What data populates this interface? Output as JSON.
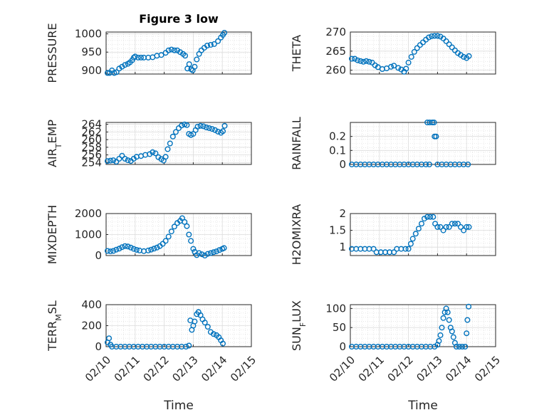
{
  "figure": {
    "title": "Figure 3 low",
    "xlabel": "Time",
    "xticks": [
      "02/10",
      "02/11",
      "02/12",
      "02/13",
      "02/14",
      "02/15"
    ],
    "marker_color": "#0072BD"
  },
  "chart_data": [
    {
      "type": "scatter",
      "ylabel": "PRESSURE",
      "title": "Figure 3 low",
      "xlim": [
        10,
        15
      ],
      "ylim": [
        890,
        1005
      ],
      "yticks": [
        900,
        950,
        1000
      ],
      "points": [
        [
          10.05,
          893
        ],
        [
          10.12,
          893
        ],
        [
          10.2,
          900
        ],
        [
          10.28,
          893
        ],
        [
          10.36,
          895
        ],
        [
          10.45,
          905
        ],
        [
          10.55,
          910
        ],
        [
          10.65,
          915
        ],
        [
          10.75,
          918
        ],
        [
          10.82,
          922
        ],
        [
          10.9,
          928
        ],
        [
          10.95,
          935
        ],
        [
          11.0,
          938
        ],
        [
          11.1,
          935
        ],
        [
          11.2,
          935
        ],
        [
          11.3,
          935
        ],
        [
          11.45,
          935
        ],
        [
          11.6,
          936
        ],
        [
          11.75,
          940
        ],
        [
          11.9,
          942
        ],
        [
          12.05,
          948
        ],
        [
          12.15,
          955
        ],
        [
          12.25,
          957
        ],
        [
          12.35,
          955
        ],
        [
          12.45,
          955
        ],
        [
          12.55,
          950
        ],
        [
          12.65,
          945
        ],
        [
          12.72,
          940
        ],
        [
          12.8,
          905
        ],
        [
          12.86,
          917
        ],
        [
          12.93,
          903
        ],
        [
          12.98,
          900
        ],
        [
          13.05,
          910
        ],
        [
          13.12,
          930
        ],
        [
          13.2,
          945
        ],
        [
          13.28,
          955
        ],
        [
          13.38,
          962
        ],
        [
          13.48,
          968
        ],
        [
          13.6,
          970
        ],
        [
          13.72,
          972
        ],
        [
          13.85,
          980
        ],
        [
          13.95,
          990
        ],
        [
          14.02,
          997
        ],
        [
          14.07,
          1003
        ]
      ]
    },
    {
      "type": "scatter",
      "ylabel": "THETA",
      "xlim": [
        10,
        15
      ],
      "ylim": [
        259,
        270
      ],
      "yticks": [
        260,
        265,
        270
      ],
      "points": [
        [
          10.05,
          263
        ],
        [
          10.15,
          263
        ],
        [
          10.25,
          262.6
        ],
        [
          10.35,
          262.4
        ],
        [
          10.45,
          262.2
        ],
        [
          10.55,
          262.4
        ],
        [
          10.65,
          262.2
        ],
        [
          10.75,
          262
        ],
        [
          10.85,
          261.3
        ],
        [
          10.95,
          260.8
        ],
        [
          11.1,
          260.3
        ],
        [
          11.25,
          260.5
        ],
        [
          11.4,
          260.9
        ],
        [
          11.5,
          261.2
        ],
        [
          11.65,
          260.6
        ],
        [
          11.75,
          260.2
        ],
        [
          11.85,
          259.6
        ],
        [
          11.92,
          260.4
        ],
        [
          12.0,
          262
        ],
        [
          12.1,
          263.5
        ],
        [
          12.2,
          264.8
        ],
        [
          12.3,
          265.8
        ],
        [
          12.4,
          266.6
        ],
        [
          12.5,
          267.3
        ],
        [
          12.6,
          268
        ],
        [
          12.7,
          268.6
        ],
        [
          12.8,
          268.9
        ],
        [
          12.9,
          269
        ],
        [
          13.0,
          269
        ],
        [
          13.1,
          268.8
        ],
        [
          13.2,
          268.3
        ],
        [
          13.3,
          267.6
        ],
        [
          13.4,
          266.8
        ],
        [
          13.5,
          266
        ],
        [
          13.6,
          265.2
        ],
        [
          13.7,
          264.5
        ],
        [
          13.8,
          264
        ],
        [
          13.9,
          263.5
        ],
        [
          14.0,
          263.2
        ],
        [
          14.08,
          263.7
        ]
      ]
    },
    {
      "type": "scatter",
      "ylabel": "AIR_TEMP",
      "xlim": [
        10,
        15
      ],
      "ylim": [
        253.5,
        264.5
      ],
      "yticks": [
        254,
        256,
        258,
        260,
        262,
        264
      ],
      "points": [
        [
          10.05,
          254.4
        ],
        [
          10.15,
          254.5
        ],
        [
          10.25,
          254.6
        ],
        [
          10.35,
          254.2
        ],
        [
          10.45,
          255
        ],
        [
          10.55,
          255.8
        ],
        [
          10.65,
          255
        ],
        [
          10.75,
          254.6
        ],
        [
          10.85,
          254.4
        ],
        [
          10.95,
          255
        ],
        [
          11.05,
          255.5
        ],
        [
          11.2,
          255.7
        ],
        [
          11.35,
          256
        ],
        [
          11.5,
          256.2
        ],
        [
          11.6,
          256.7
        ],
        [
          11.7,
          256.4
        ],
        [
          11.8,
          255.4
        ],
        [
          11.9,
          254.9
        ],
        [
          11.98,
          254.5
        ],
        [
          12.05,
          255.5
        ],
        [
          12.12,
          257.5
        ],
        [
          12.2,
          259
        ],
        [
          12.3,
          260.8
        ],
        [
          12.4,
          262
        ],
        [
          12.5,
          263
        ],
        [
          12.6,
          263.7
        ],
        [
          12.7,
          264
        ],
        [
          12.78,
          263.8
        ],
        [
          12.85,
          261.5
        ],
        [
          12.92,
          261.2
        ],
        [
          13.0,
          261.5
        ],
        [
          13.08,
          262.5
        ],
        [
          13.15,
          263.4
        ],
        [
          13.25,
          263.6
        ],
        [
          13.35,
          263.5
        ],
        [
          13.45,
          263.2
        ],
        [
          13.55,
          263
        ],
        [
          13.65,
          262.8
        ],
        [
          13.75,
          262.5
        ],
        [
          13.85,
          262.1
        ],
        [
          13.95,
          261.8
        ],
        [
          14.02,
          262.2
        ],
        [
          14.08,
          263.6
        ]
      ]
    },
    {
      "type": "scatter",
      "ylabel": "RAINFALL",
      "xlim": [
        10,
        15
      ],
      "ylim": [
        0,
        0.3
      ],
      "yticks": [
        0,
        0.1,
        0.2
      ],
      "points": [
        [
          10.05,
          0
        ],
        [
          10.2,
          0
        ],
        [
          10.35,
          0
        ],
        [
          10.5,
          0
        ],
        [
          10.65,
          0
        ],
        [
          10.8,
          0
        ],
        [
          10.95,
          0
        ],
        [
          11.1,
          0
        ],
        [
          11.25,
          0
        ],
        [
          11.4,
          0
        ],
        [
          11.55,
          0
        ],
        [
          11.7,
          0
        ],
        [
          11.85,
          0
        ],
        [
          12.0,
          0
        ],
        [
          12.15,
          0
        ],
        [
          12.3,
          0
        ],
        [
          12.45,
          0
        ],
        [
          12.6,
          0
        ],
        [
          12.72,
          0
        ],
        [
          12.65,
          0.3
        ],
        [
          12.73,
          0.3
        ],
        [
          12.82,
          0.3
        ],
        [
          12.88,
          0.3
        ],
        [
          12.9,
          0.2
        ],
        [
          12.95,
          0.2
        ],
        [
          13.0,
          0
        ],
        [
          13.15,
          0
        ],
        [
          13.3,
          0
        ],
        [
          13.45,
          0
        ],
        [
          13.6,
          0
        ],
        [
          13.75,
          0
        ],
        [
          13.9,
          0
        ],
        [
          14.05,
          0
        ]
      ]
    },
    {
      "type": "scatter",
      "ylabel": "MIXDEPTH",
      "xlim": [
        10,
        15
      ],
      "ylim": [
        0,
        2000
      ],
      "yticks": [
        0,
        1000,
        2000
      ],
      "points": [
        [
          10.05,
          220
        ],
        [
          10.15,
          200
        ],
        [
          10.25,
          220
        ],
        [
          10.35,
          280
        ],
        [
          10.45,
          330
        ],
        [
          10.55,
          400
        ],
        [
          10.65,
          450
        ],
        [
          10.75,
          430
        ],
        [
          10.85,
          380
        ],
        [
          10.95,
          320
        ],
        [
          11.05,
          270
        ],
        [
          11.15,
          240
        ],
        [
          11.3,
          210
        ],
        [
          11.45,
          240
        ],
        [
          11.55,
          280
        ],
        [
          11.65,
          330
        ],
        [
          11.75,
          380
        ],
        [
          11.85,
          450
        ],
        [
          11.95,
          560
        ],
        [
          12.05,
          700
        ],
        [
          12.15,
          900
        ],
        [
          12.25,
          1150
        ],
        [
          12.35,
          1380
        ],
        [
          12.45,
          1550
        ],
        [
          12.55,
          1650
        ],
        [
          12.62,
          1780
        ],
        [
          12.7,
          1600
        ],
        [
          12.78,
          1400
        ],
        [
          12.85,
          1000
        ],
        [
          12.92,
          700
        ],
        [
          13.0,
          320
        ],
        [
          13.05,
          180
        ],
        [
          13.12,
          20
        ],
        [
          13.2,
          120
        ],
        [
          13.3,
          60
        ],
        [
          13.4,
          0
        ],
        [
          13.5,
          80
        ],
        [
          13.6,
          120
        ],
        [
          13.7,
          160
        ],
        [
          13.8,
          200
        ],
        [
          13.9,
          260
        ],
        [
          14.0,
          320
        ],
        [
          14.06,
          360
        ]
      ]
    },
    {
      "type": "scatter",
      "ylabel": "H2OMIXRA",
      "xlim": [
        10,
        15
      ],
      "ylim": [
        0.75,
        2
      ],
      "yticks": [
        1,
        1.5,
        2
      ],
      "points": [
        [
          10.05,
          0.95
        ],
        [
          10.2,
          0.95
        ],
        [
          10.35,
          0.95
        ],
        [
          10.5,
          0.95
        ],
        [
          10.65,
          0.95
        ],
        [
          10.8,
          0.95
        ],
        [
          10.9,
          0.85
        ],
        [
          11.05,
          0.85
        ],
        [
          11.2,
          0.85
        ],
        [
          11.35,
          0.85
        ],
        [
          11.5,
          0.85
        ],
        [
          11.6,
          0.95
        ],
        [
          11.75,
          0.95
        ],
        [
          11.9,
          0.95
        ],
        [
          12.0,
          0.95
        ],
        [
          12.08,
          1.1
        ],
        [
          12.15,
          1.25
        ],
        [
          12.25,
          1.4
        ],
        [
          12.35,
          1.55
        ],
        [
          12.45,
          1.7
        ],
        [
          12.55,
          1.85
        ],
        [
          12.65,
          1.9
        ],
        [
          12.75,
          1.9
        ],
        [
          12.85,
          1.9
        ],
        [
          12.92,
          1.7
        ],
        [
          13.0,
          1.6
        ],
        [
          13.1,
          1.6
        ],
        [
          13.2,
          1.5
        ],
        [
          13.3,
          1.6
        ],
        [
          13.4,
          1.6
        ],
        [
          13.5,
          1.7
        ],
        [
          13.6,
          1.7
        ],
        [
          13.7,
          1.7
        ],
        [
          13.8,
          1.6
        ],
        [
          13.9,
          1.5
        ],
        [
          14.0,
          1.6
        ],
        [
          14.08,
          1.6
        ]
      ]
    },
    {
      "type": "scatter",
      "ylabel": "TERR_MSL",
      "xlim": [
        10,
        15
      ],
      "ylim": [
        0,
        400
      ],
      "yticks": [
        0,
        200,
        400
      ],
      "points": [
        [
          10.05,
          40
        ],
        [
          10.1,
          80
        ],
        [
          10.15,
          20
        ],
        [
          10.2,
          0
        ],
        [
          10.35,
          0
        ],
        [
          10.5,
          0
        ],
        [
          10.65,
          0
        ],
        [
          10.8,
          0
        ],
        [
          10.95,
          0
        ],
        [
          11.1,
          0
        ],
        [
          11.25,
          0
        ],
        [
          11.4,
          0
        ],
        [
          11.55,
          0
        ],
        [
          11.7,
          0
        ],
        [
          11.85,
          0
        ],
        [
          12.0,
          0
        ],
        [
          12.15,
          0
        ],
        [
          12.3,
          0
        ],
        [
          12.45,
          0
        ],
        [
          12.6,
          0
        ],
        [
          12.75,
          0
        ],
        [
          12.85,
          10
        ],
        [
          12.9,
          250
        ],
        [
          12.95,
          160
        ],
        [
          13.0,
          200
        ],
        [
          13.05,
          240
        ],
        [
          13.12,
          310
        ],
        [
          13.18,
          330
        ],
        [
          13.25,
          300
        ],
        [
          13.32,
          260
        ],
        [
          13.4,
          230
        ],
        [
          13.5,
          190
        ],
        [
          13.6,
          140
        ],
        [
          13.7,
          120
        ],
        [
          13.8,
          110
        ],
        [
          13.88,
          90
        ],
        [
          13.95,
          60
        ],
        [
          14.02,
          30
        ]
      ]
    },
    {
      "type": "scatter",
      "ylabel": "SUN_FLUX",
      "xlim": [
        10,
        15
      ],
      "ylim": [
        0,
        110
      ],
      "yticks": [
        0,
        50,
        100
      ],
      "points": [
        [
          10.05,
          0
        ],
        [
          10.2,
          0
        ],
        [
          10.35,
          0
        ],
        [
          10.5,
          0
        ],
        [
          10.65,
          0
        ],
        [
          10.8,
          0
        ],
        [
          10.95,
          0
        ],
        [
          11.1,
          0
        ],
        [
          11.25,
          0
        ],
        [
          11.4,
          0
        ],
        [
          11.55,
          0
        ],
        [
          11.7,
          0
        ],
        [
          11.85,
          0
        ],
        [
          12.0,
          0
        ],
        [
          12.15,
          0
        ],
        [
          12.3,
          0
        ],
        [
          12.45,
          0
        ],
        [
          12.6,
          0
        ],
        [
          12.75,
          0
        ],
        [
          12.9,
          0
        ],
        [
          13.0,
          5
        ],
        [
          13.05,
          15
        ],
        [
          13.1,
          30
        ],
        [
          13.15,
          50
        ],
        [
          13.2,
          75
        ],
        [
          13.25,
          90
        ],
        [
          13.3,
          100
        ],
        [
          13.35,
          90
        ],
        [
          13.4,
          70
        ],
        [
          13.45,
          50
        ],
        [
          13.5,
          40
        ],
        [
          13.55,
          25
        ],
        [
          13.6,
          10
        ],
        [
          13.65,
          0
        ],
        [
          13.75,
          0
        ],
        [
          13.85,
          0
        ],
        [
          13.95,
          0
        ],
        [
          14.0,
          35
        ],
        [
          14.03,
          70
        ],
        [
          14.07,
          105
        ]
      ]
    }
  ]
}
